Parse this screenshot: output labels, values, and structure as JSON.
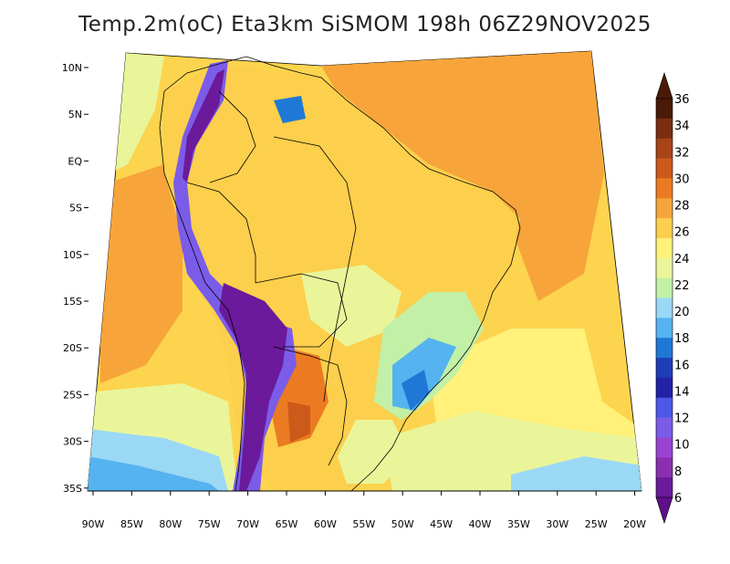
{
  "title": "Temp.2m(oC) Eta3km SiSMOM 198h 06Z29NOV2025",
  "map": {
    "variable": "2 m temperature",
    "units": "oC",
    "model": "Eta3km SiSMOM",
    "forecast_hour": "198h",
    "valid_time": "06Z29NOV2025",
    "lat_labels": [
      "10N",
      "5N",
      "EQ",
      "5S",
      "10S",
      "15S",
      "20S",
      "25S",
      "30S",
      "35S"
    ],
    "lon_labels": [
      "90W",
      "85W",
      "80W",
      "75W",
      "70W",
      "65W",
      "60W",
      "55W",
      "50W",
      "45W",
      "40W",
      "35W",
      "30W",
      "25W",
      "20W"
    ]
  },
  "legend": {
    "levels": [
      "36",
      "34",
      "32",
      "30",
      "28",
      "26",
      "24",
      "22",
      "20",
      "18",
      "16",
      "14",
      "12",
      "10",
      "8",
      "6"
    ],
    "colors": [
      "#4a1a08",
      "#7a2e10",
      "#a84418",
      "#cc5a1a",
      "#ec7a22",
      "#f7a53a",
      "#fccf4c",
      "#fff17a",
      "#eaf59a",
      "#c2f0a6",
      "#9ad8f5",
      "#55b3ef",
      "#1f78d6",
      "#1e3db8",
      "#2222a8",
      "#4d57e8",
      "#7b5ce8",
      "#9a44d2",
      "#8a2fb0",
      "#6a1a9a"
    ],
    "top_arrow_color": "#4a1a08",
    "bottom_arrow_color": "#5e0f8a"
  }
}
